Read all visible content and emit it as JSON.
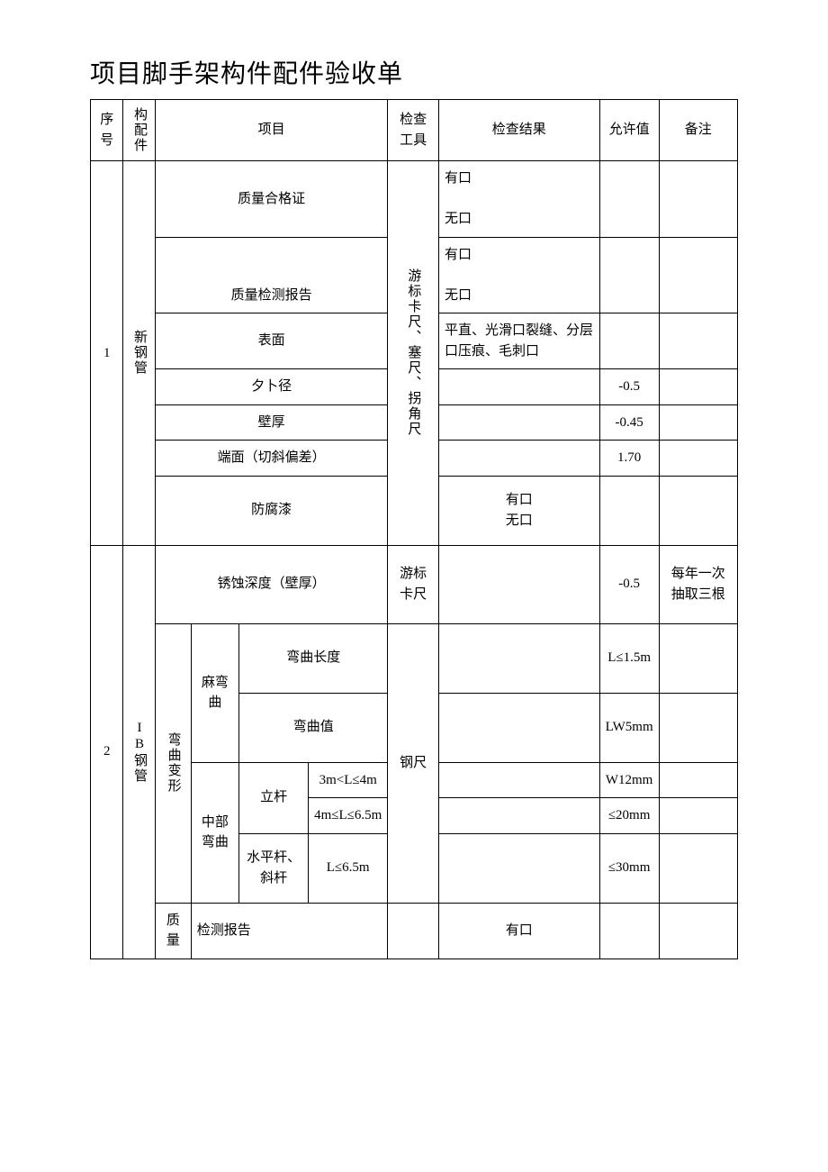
{
  "title": "项目脚手架构件配件验收单",
  "headers": {
    "seq": "序号",
    "component": "构配件",
    "item": "项目",
    "tool": "检查工具",
    "result": "检查结果",
    "allowed": "允许值",
    "remark": "备注"
  },
  "group1": {
    "seq": "1",
    "component": "新钢管",
    "tool": "游标卡尺、塞尺、拐角尺",
    "rows": {
      "r1": {
        "item": "质量合格证",
        "result": "有口\n\n无口"
      },
      "r2": {
        "item": "质量检测报告",
        "result": "有口\n\n无口"
      },
      "r3": {
        "item": "表面",
        "result": "平直、光滑口裂缝、分层口压痕、毛刺口"
      },
      "r4": {
        "item": "夕卜径",
        "allowed": "-0.5"
      },
      "r5": {
        "item": "壁厚",
        "allowed": "-0.45"
      },
      "r6": {
        "item": "端面（切斜偏差）",
        "allowed": "1.70"
      },
      "r7": {
        "item": "防腐漆",
        "result": "有口\n无口"
      }
    }
  },
  "group2": {
    "seq": "2",
    "component": "IB钢管",
    "rows": {
      "r1": {
        "item": "锈蚀深度（壁厚）",
        "tool": "游标卡尺",
        "allowed": "-0.5",
        "remark": "每年一次抽取三根"
      },
      "bend_group": "弯曲变形",
      "slight_bend": "麻弯曲",
      "r2": {
        "item": "弯曲长度",
        "allowed": "L≤1.5m"
      },
      "r3": {
        "item": "弯曲值",
        "allowed": "LW5mm"
      },
      "mid_bend": "中部弯曲",
      "pole": "立杆",
      "r4": {
        "item": "3m<L≤4m",
        "allowed": "W12mm"
      },
      "r5": {
        "item": "4m≤L≤6.5m",
        "allowed": "≤20mm"
      },
      "horiz": "水平杆、斜杆",
      "r6": {
        "item": "L≤6.5m",
        "allowed": "≤30mm"
      },
      "tool2": "钢尺",
      "quality": "质量",
      "r7": {
        "item": "检测报告",
        "result": "有口"
      }
    }
  }
}
